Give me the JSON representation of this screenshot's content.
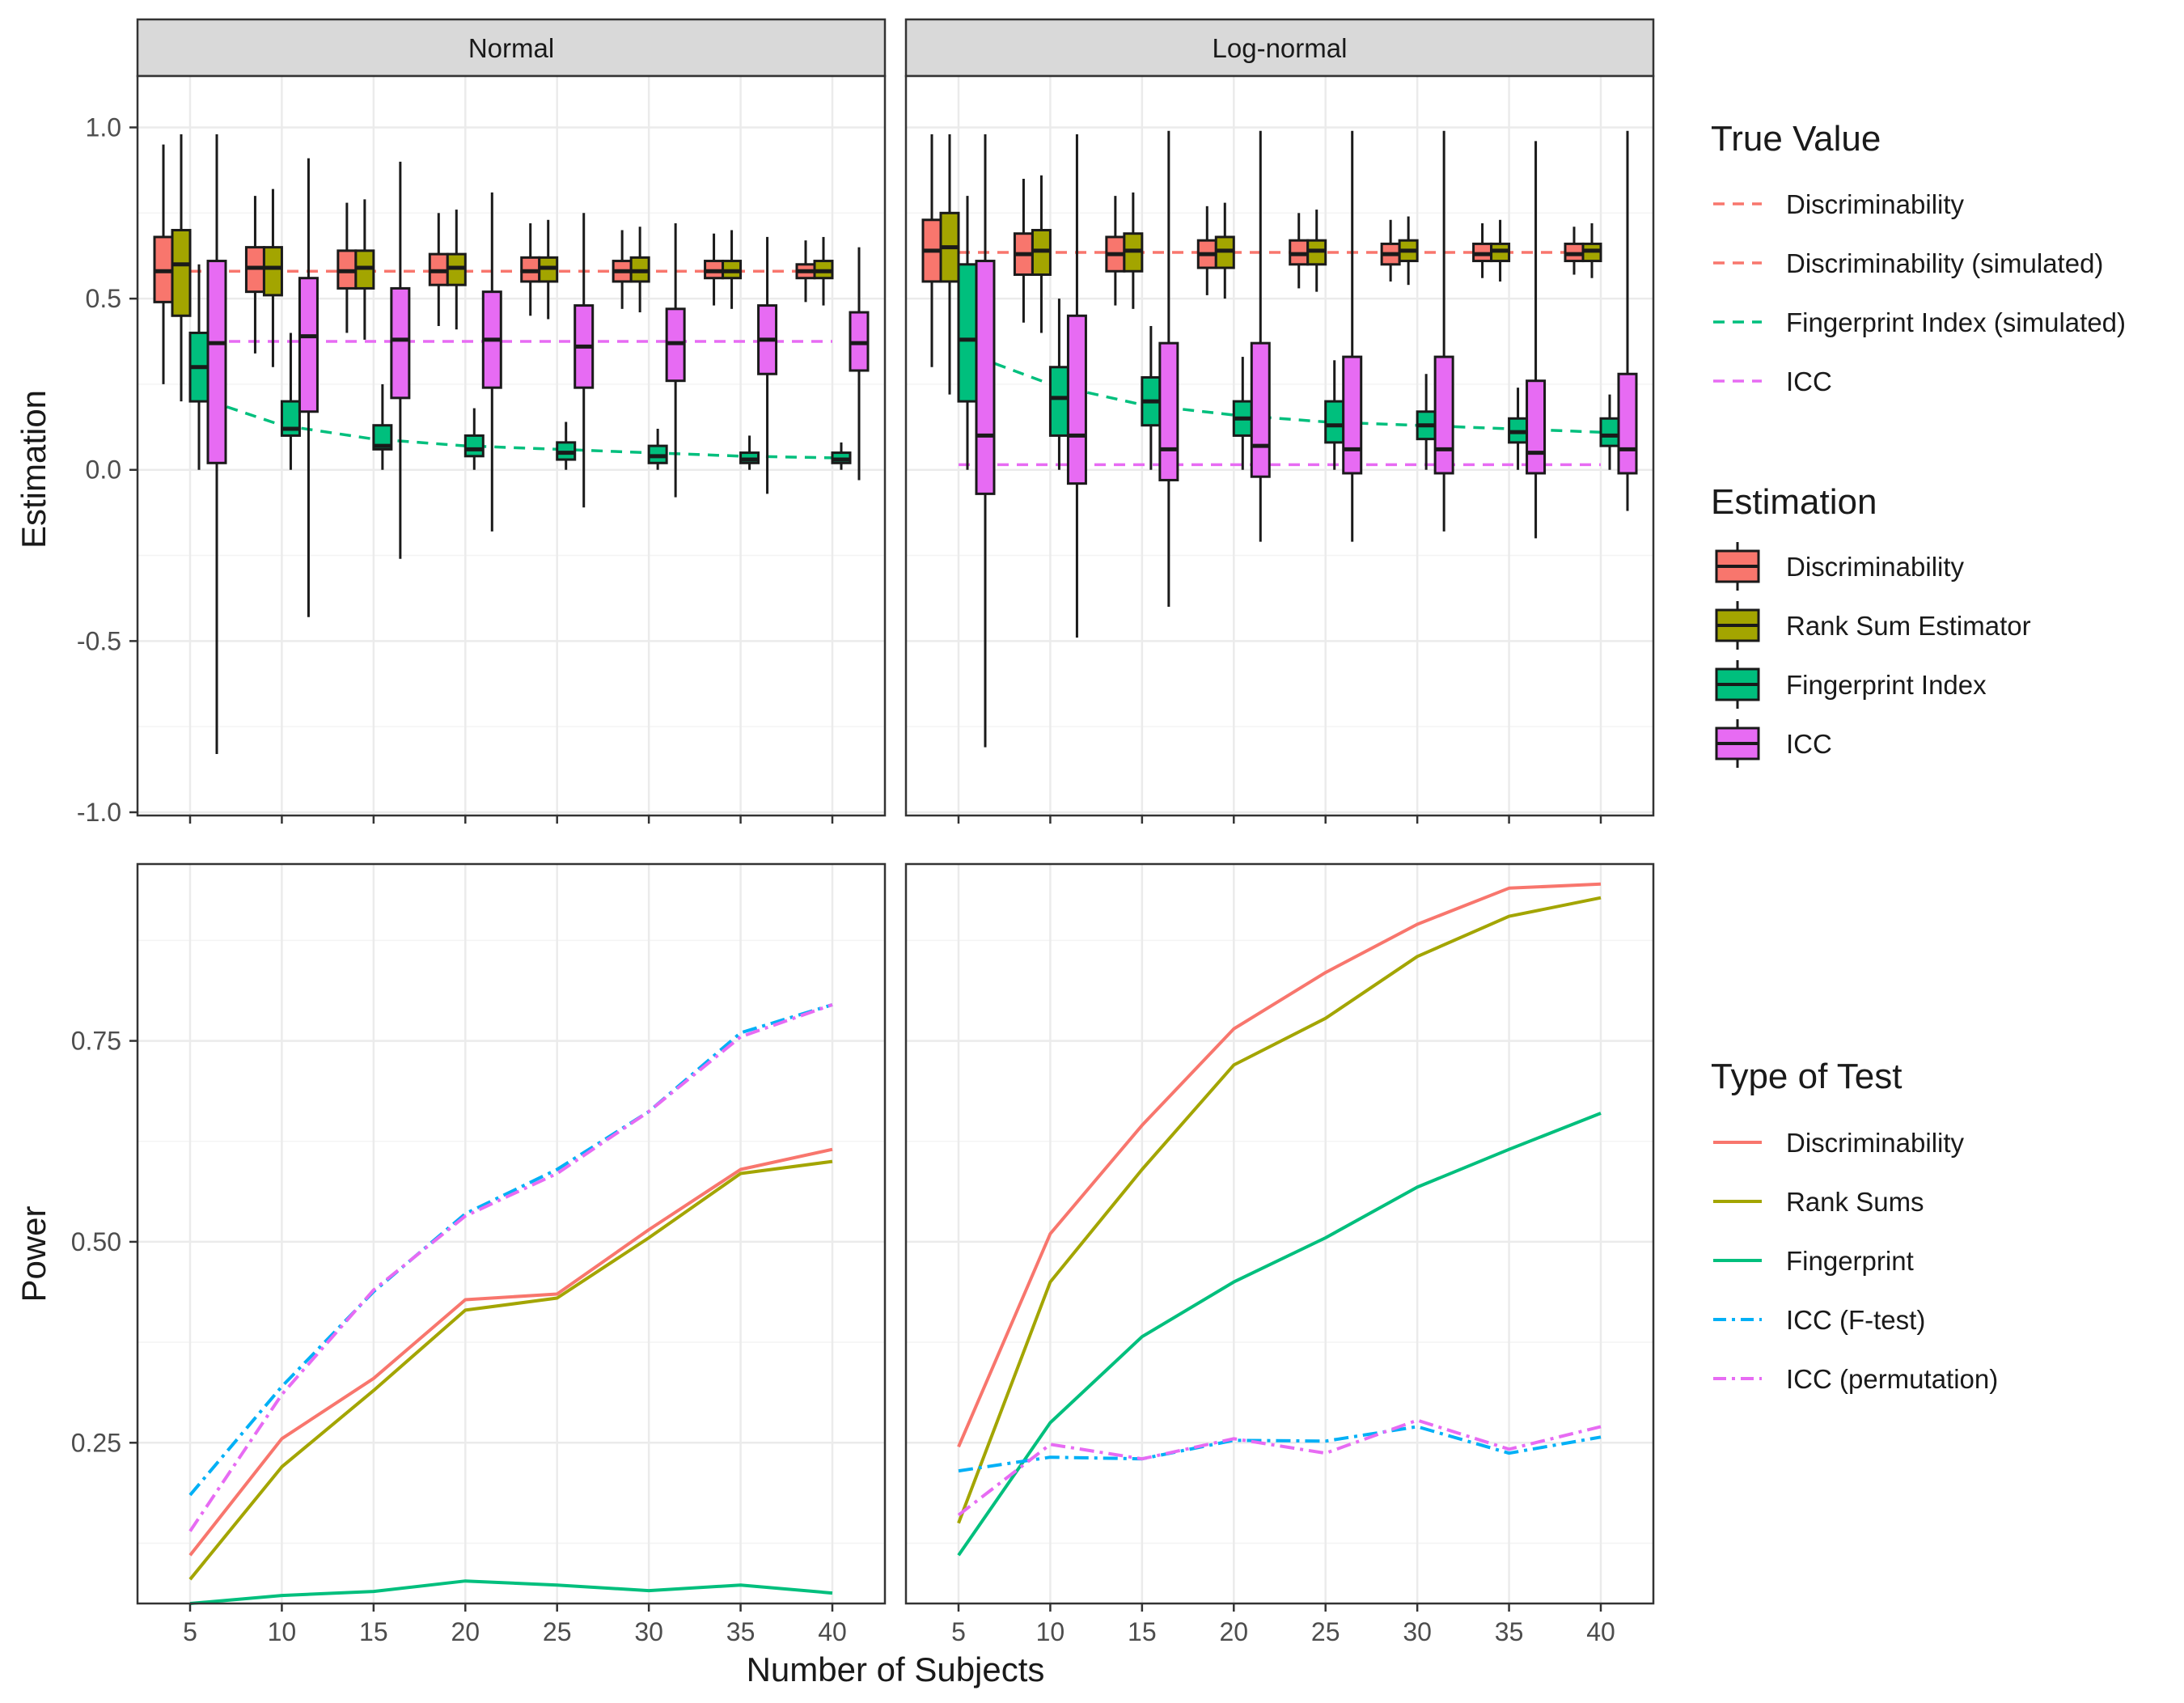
{
  "colors": {
    "discriminability": "#F8766D",
    "rank_sum": "#A3A500",
    "fingerprint": "#00BF7D",
    "icc_ftest": "#00B0F6",
    "icc": "#E76BF3",
    "strip_fill": "#D9D9D9",
    "grid_major": "#EBEBEB",
    "grid_minor": "#F4F4F4",
    "panel_border": "#333333"
  },
  "strips": [
    "Normal",
    "Log-normal"
  ],
  "axis": {
    "x_title": "Number of Subjects",
    "y_top_title": "Estimation",
    "y_bottom_title": "Power"
  },
  "legend": {
    "true_value": {
      "title": "True Value",
      "items": [
        "Discriminability",
        "Discriminability (simulated)",
        "Fingerprint Index (simulated)",
        "ICC"
      ]
    },
    "estimation": {
      "title": "Estimation",
      "items": [
        "Discriminability",
        "Rank Sum Estimator",
        "Fingerprint Index",
        "ICC"
      ]
    },
    "test_type": {
      "title": "Type of Test",
      "items": [
        "Discriminability",
        "Rank Sums",
        "Fingerprint",
        "ICC (F-test)",
        "ICC (permutation)"
      ]
    }
  },
  "chart_data": [
    {
      "type": "box",
      "panel": "Normal",
      "ylabel": "Estimation",
      "xlabel": "Number of Subjects",
      "ylim": [
        -1.0,
        1.15
      ],
      "y_ticks": [
        1.0,
        0.5,
        0.0,
        -0.5,
        -1.0
      ],
      "y_tick_labels": [
        "1.0",
        "0.5",
        "0.0",
        "-0.5",
        "-1.0"
      ],
      "x": [
        5,
        10,
        15,
        20,
        25,
        30,
        35,
        40
      ],
      "true_values": {
        "Discriminability": 0.58,
        "ICC": 0.375,
        "Fingerprint Index (simulated)": [
          0.22,
          0.13,
          0.09,
          0.07,
          0.06,
          0.05,
          0.04,
          0.035
        ]
      },
      "boxes": {
        "Discriminability": [
          [
            0.25,
            0.49,
            0.58,
            0.68,
            0.95
          ],
          [
            0.34,
            0.52,
            0.59,
            0.65,
            0.8
          ],
          [
            0.4,
            0.53,
            0.58,
            0.64,
            0.78
          ],
          [
            0.42,
            0.54,
            0.58,
            0.63,
            0.75
          ],
          [
            0.45,
            0.55,
            0.58,
            0.62,
            0.72
          ],
          [
            0.47,
            0.55,
            0.58,
            0.61,
            0.7
          ],
          [
            0.48,
            0.56,
            0.58,
            0.61,
            0.69
          ],
          [
            0.49,
            0.56,
            0.58,
            0.6,
            0.67
          ]
        ],
        "Rank Sum Estimator": [
          [
            0.2,
            0.45,
            0.6,
            0.7,
            0.98
          ],
          [
            0.3,
            0.51,
            0.59,
            0.65,
            0.82
          ],
          [
            0.38,
            0.53,
            0.59,
            0.64,
            0.79
          ],
          [
            0.41,
            0.54,
            0.59,
            0.63,
            0.76
          ],
          [
            0.44,
            0.55,
            0.59,
            0.62,
            0.73
          ],
          [
            0.46,
            0.55,
            0.58,
            0.62,
            0.71
          ],
          [
            0.47,
            0.56,
            0.58,
            0.61,
            0.7
          ],
          [
            0.48,
            0.56,
            0.58,
            0.61,
            0.68
          ]
        ],
        "Fingerprint Index": [
          [
            0.0,
            0.2,
            0.3,
            0.4,
            0.6
          ],
          [
            0.0,
            0.1,
            0.12,
            0.2,
            0.4
          ],
          [
            0.0,
            0.06,
            0.07,
            0.13,
            0.25
          ],
          [
            0.0,
            0.04,
            0.06,
            0.1,
            0.18
          ],
          [
            0.0,
            0.03,
            0.05,
            0.08,
            0.14
          ],
          [
            0.0,
            0.02,
            0.04,
            0.07,
            0.12
          ],
          [
            0.0,
            0.02,
            0.03,
            0.05,
            0.1
          ],
          [
            0.0,
            0.02,
            0.03,
            0.05,
            0.08
          ]
        ],
        "ICC": [
          [
            -0.83,
            0.02,
            0.37,
            0.61,
            0.98
          ],
          [
            -0.43,
            0.17,
            0.39,
            0.56,
            0.91
          ],
          [
            -0.26,
            0.21,
            0.38,
            0.53,
            0.9
          ],
          [
            -0.18,
            0.24,
            0.38,
            0.52,
            0.81
          ],
          [
            -0.11,
            0.24,
            0.36,
            0.48,
            0.75
          ],
          [
            -0.08,
            0.26,
            0.37,
            0.47,
            0.72
          ],
          [
            -0.07,
            0.28,
            0.38,
            0.48,
            0.68
          ],
          [
            -0.03,
            0.29,
            0.37,
            0.46,
            0.65
          ]
        ]
      }
    },
    {
      "type": "box",
      "panel": "Log-normal",
      "ylabel": "Estimation",
      "xlabel": "Number of Subjects",
      "ylim": [
        -1.0,
        1.15
      ],
      "x": [
        5,
        10,
        15,
        20,
        25,
        30,
        35,
        40
      ],
      "true_values": {
        "Discriminability": 0.635,
        "ICC": 0.015,
        "Fingerprint Index (simulated)": [
          0.35,
          0.25,
          0.19,
          0.16,
          0.14,
          0.13,
          0.12,
          0.11
        ]
      },
      "boxes": {
        "Discriminability": [
          [
            0.3,
            0.55,
            0.64,
            0.73,
            0.98
          ],
          [
            0.43,
            0.57,
            0.63,
            0.69,
            0.85
          ],
          [
            0.48,
            0.58,
            0.63,
            0.68,
            0.8
          ],
          [
            0.51,
            0.59,
            0.63,
            0.67,
            0.77
          ],
          [
            0.53,
            0.6,
            0.63,
            0.67,
            0.75
          ],
          [
            0.55,
            0.6,
            0.63,
            0.66,
            0.73
          ],
          [
            0.56,
            0.61,
            0.63,
            0.66,
            0.72
          ],
          [
            0.57,
            0.61,
            0.63,
            0.66,
            0.71
          ]
        ],
        "Rank Sum Estimator": [
          [
            0.22,
            0.55,
            0.65,
            0.75,
            0.98
          ],
          [
            0.4,
            0.57,
            0.64,
            0.7,
            0.86
          ],
          [
            0.47,
            0.58,
            0.64,
            0.69,
            0.81
          ],
          [
            0.5,
            0.59,
            0.64,
            0.68,
            0.78
          ],
          [
            0.52,
            0.6,
            0.64,
            0.67,
            0.76
          ],
          [
            0.54,
            0.61,
            0.64,
            0.67,
            0.74
          ],
          [
            0.55,
            0.61,
            0.64,
            0.66,
            0.73
          ],
          [
            0.56,
            0.61,
            0.64,
            0.66,
            0.72
          ]
        ],
        "Fingerprint Index": [
          [
            0.0,
            0.2,
            0.38,
            0.6,
            0.8
          ],
          [
            0.0,
            0.1,
            0.21,
            0.3,
            0.5
          ],
          [
            0.0,
            0.13,
            0.2,
            0.27,
            0.42
          ],
          [
            0.0,
            0.1,
            0.15,
            0.2,
            0.33
          ],
          [
            0.0,
            0.08,
            0.13,
            0.2,
            0.32
          ],
          [
            0.0,
            0.09,
            0.13,
            0.17,
            0.28
          ],
          [
            0.0,
            0.08,
            0.11,
            0.15,
            0.24
          ],
          [
            0.0,
            0.07,
            0.1,
            0.15,
            0.22
          ]
        ],
        "ICC": [
          [
            -0.81,
            -0.07,
            0.1,
            0.61,
            0.98
          ],
          [
            -0.49,
            -0.04,
            0.1,
            0.45,
            0.98
          ],
          [
            -0.4,
            -0.03,
            0.06,
            0.37,
            0.99
          ],
          [
            -0.21,
            -0.02,
            0.07,
            0.37,
            0.99
          ],
          [
            -0.21,
            -0.01,
            0.06,
            0.33,
            0.99
          ],
          [
            -0.18,
            -0.01,
            0.06,
            0.33,
            0.99
          ],
          [
            -0.2,
            -0.01,
            0.05,
            0.26,
            0.96
          ],
          [
            -0.12,
            -0.01,
            0.06,
            0.28,
            0.99
          ]
        ]
      }
    },
    {
      "type": "line",
      "panel": "Normal",
      "ylabel": "Power",
      "xlabel": "Number of Subjects",
      "ylim": [
        0.05,
        0.97
      ],
      "y_ticks": [
        0.25,
        0.5,
        0.75
      ],
      "y_tick_labels": [
        "0.25",
        "0.50",
        "0.75"
      ],
      "x": [
        5,
        10,
        15,
        20,
        25,
        30,
        35,
        40
      ],
      "x_tick_labels": [
        "5",
        "10",
        "15",
        "20",
        "25",
        "30",
        "35",
        "40"
      ],
      "series": [
        {
          "name": "Discriminability",
          "values": [
            0.11,
            0.255,
            0.33,
            0.428,
            0.435,
            0.515,
            0.59,
            0.615
          ]
        },
        {
          "name": "Rank Sums",
          "values": [
            0.08,
            0.22,
            0.315,
            0.415,
            0.43,
            0.505,
            0.585,
            0.6
          ]
        },
        {
          "name": "Fingerprint",
          "values": [
            0.05,
            0.06,
            0.065,
            0.078,
            0.073,
            0.066,
            0.073,
            0.063
          ]
        },
        {
          "name": "ICC (F-test)",
          "values": [
            0.185,
            0.32,
            0.438,
            0.535,
            0.59,
            0.662,
            0.76,
            0.795
          ]
        },
        {
          "name": "ICC (permutation)",
          "values": [
            0.14,
            0.31,
            0.44,
            0.532,
            0.585,
            0.662,
            0.755,
            0.795
          ]
        }
      ]
    },
    {
      "type": "line",
      "panel": "Log-normal",
      "ylabel": "Power",
      "xlabel": "Number of Subjects",
      "ylim": [
        0.05,
        0.97
      ],
      "x": [
        5,
        10,
        15,
        20,
        25,
        30,
        35,
        40
      ],
      "x_tick_labels": [
        "5",
        "10",
        "15",
        "20",
        "25",
        "30",
        "35",
        "40"
      ],
      "series": [
        {
          "name": "Discriminability",
          "values": [
            0.245,
            0.51,
            0.645,
            0.765,
            0.835,
            0.895,
            0.94,
            0.945
          ]
        },
        {
          "name": "Rank Sums",
          "values": [
            0.15,
            0.45,
            0.59,
            0.72,
            0.778,
            0.855,
            0.905,
            0.928
          ]
        },
        {
          "name": "Fingerprint",
          "values": [
            0.11,
            0.275,
            0.382,
            0.45,
            0.505,
            0.568,
            0.615,
            0.66
          ]
        },
        {
          "name": "ICC (F-test)",
          "values": [
            0.215,
            0.232,
            0.23,
            0.253,
            0.252,
            0.27,
            0.237,
            0.257
          ]
        },
        {
          "name": "ICC (permutation)",
          "values": [
            0.16,
            0.248,
            0.23,
            0.255,
            0.237,
            0.278,
            0.242,
            0.27
          ]
        }
      ]
    }
  ]
}
